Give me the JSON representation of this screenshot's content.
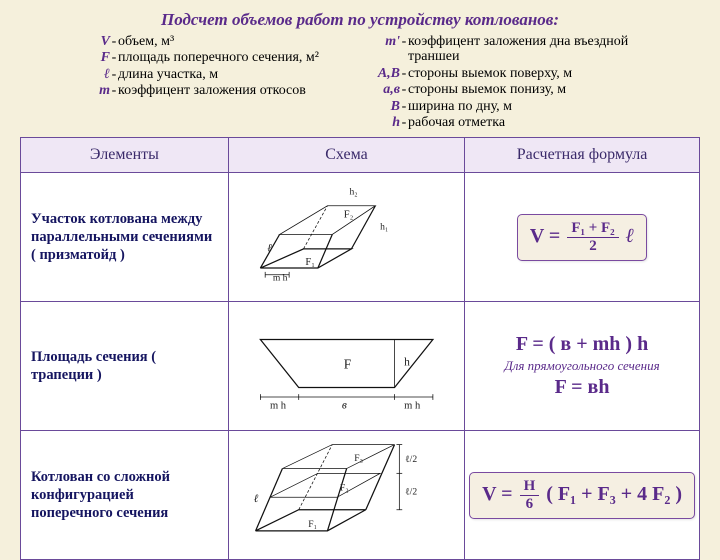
{
  "title": "Подсчет объемов работ по устройству котлованов:",
  "definitions": {
    "left": [
      {
        "sym": "V",
        "txt": "объем, м³"
      },
      {
        "sym": "F",
        "txt": "площадь поперечного сечения,  м²"
      },
      {
        "sym": "ℓ",
        "txt": "длина участка, м"
      },
      {
        "sym": "m",
        "txt": "коэффицент заложения откосов"
      }
    ],
    "right": [
      {
        "sym": "m'",
        "txt": "коэффицент заложения дна въездной траншеи"
      },
      {
        "sym": "A,B",
        "txt": "стороны выемок поверху, м"
      },
      {
        "sym": "a,в",
        "txt": "стороны выемок понизу, м"
      },
      {
        "sym": "B",
        "txt": "ширина по дну, м"
      },
      {
        "sym": "h",
        "txt": "рабочая отметка"
      }
    ]
  },
  "headers": {
    "c1": "Элементы",
    "c2": "Схема",
    "c3": "Расчетная формула"
  },
  "rows": [
    {
      "name": "Участок котлована между параллельными сечениями ( призматойд )",
      "scheme": "prism",
      "formula": "V1"
    },
    {
      "name": "Площадь сечения ( трапеции )",
      "scheme": "trap",
      "formula": "F2"
    },
    {
      "name": "Котлован со сложной конфигурацией поперечного сечения",
      "scheme": "complex",
      "formula": "V3"
    }
  ],
  "schemes": {
    "prism": {
      "labels": {
        "F1": "F₁",
        "F2": "F₂",
        "l": "ℓ",
        "h1": "h₁",
        "h2": "h₂",
        "mh": "m h"
      }
    },
    "trap": {
      "labels": {
        "F": "F",
        "h": "h",
        "mh": "m h",
        "v": "в"
      }
    },
    "complex": {
      "labels": {
        "F1": "F₁",
        "F2": "F₂",
        "F3": "F₃",
        "l": "ℓ",
        "l2": "ℓ/2"
      }
    }
  },
  "formulas": {
    "V1": {
      "boxed": true,
      "parts": {
        "lhs": "V =",
        "num": "F₁ + F₂",
        "den": "2",
        "tail": " ℓ"
      }
    },
    "F2": {
      "lines": [
        {
          "type": "fml",
          "text": "F = ( в + mh ) h"
        },
        {
          "type": "note",
          "text": "Для  прямоугольного сечения"
        },
        {
          "type": "fml",
          "text": "F = вh"
        }
      ]
    },
    "V3": {
      "boxed": true,
      "parts": {
        "lhs": "V =",
        "num": "H",
        "den": "6",
        "tail2": "( F₁ + F₃ + 4 F₂ )"
      }
    }
  },
  "colors": {
    "accent": "#5a2a8a",
    "bg": "#f5f0dc",
    "header_bg": "#efe7f5",
    "border": "#6a4a9a"
  }
}
